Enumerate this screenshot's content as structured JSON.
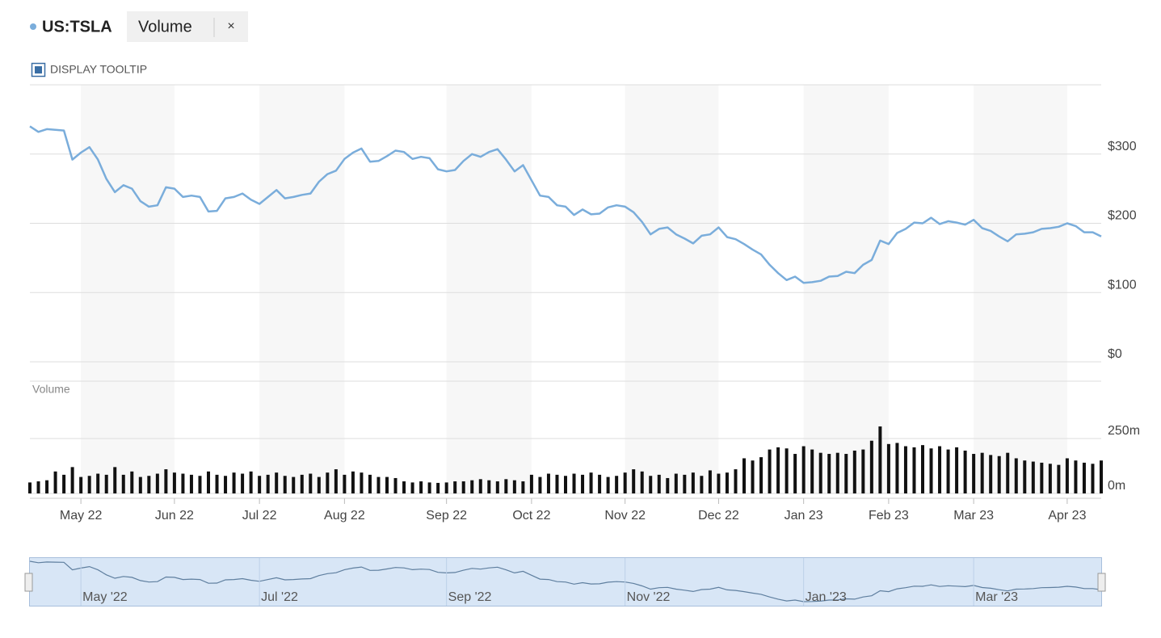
{
  "header": {
    "close": "×",
    "tooltip_toggle": "DISPLAY TOOLTIP"
  },
  "navigator": {
    "labels": [
      "May '22",
      "Jul '22",
      "Sep '22",
      "Nov '22",
      "Jan '23",
      "Mar '23"
    ]
  },
  "chart_data": [
    {
      "type": "line",
      "categories": [
        null,
        null,
        null,
        null,
        null,
        null,
        "May 22",
        null,
        null,
        null,
        null,
        null,
        null,
        null,
        null,
        null,
        null,
        "Jun 22",
        null,
        null,
        null,
        null,
        null,
        null,
        null,
        null,
        null,
        "Jul 22",
        null,
        null,
        null,
        null,
        null,
        null,
        null,
        null,
        null,
        "Aug 22",
        null,
        null,
        null,
        null,
        null,
        null,
        null,
        null,
        null,
        null,
        null,
        "Sep 22",
        null,
        null,
        null,
        null,
        null,
        null,
        null,
        null,
        null,
        "Oct 22",
        null,
        null,
        null,
        null,
        null,
        null,
        null,
        null,
        null,
        null,
        "Nov 22",
        null,
        null,
        null,
        null,
        null,
        null,
        null,
        null,
        null,
        null,
        "Dec 22",
        null,
        null,
        null,
        null,
        null,
        null,
        null,
        null,
        null,
        "Jan 23",
        null,
        null,
        null,
        null,
        null,
        null,
        null,
        null,
        null,
        "Feb 23",
        null,
        null,
        null,
        null,
        null,
        null,
        null,
        null,
        null,
        "Mar 23",
        null,
        null,
        null,
        null,
        null,
        null,
        null,
        null,
        null,
        null,
        "Apr 23",
        null,
        null,
        null,
        null
      ],
      "series": [
        {
          "name": "US:TSLA",
          "color": "#7aaddb",
          "values": [
            340,
            332,
            336,
            335,
            334,
            292,
            302,
            310,
            292,
            264,
            245,
            255,
            250,
            232,
            224,
            226,
            252,
            250,
            238,
            240,
            238,
            217,
            218,
            236,
            238,
            243,
            234,
            228,
            238,
            248,
            236,
            238,
            241,
            243,
            260,
            271,
            276,
            293,
            302,
            308,
            289,
            290,
            297,
            305,
            303,
            293,
            296,
            294,
            278,
            275,
            277,
            290,
            300,
            296,
            303,
            307,
            292,
            275,
            284,
            262,
            240,
            238,
            226,
            224,
            212,
            220,
            213,
            214,
            223,
            226,
            224,
            216,
            202,
            184,
            192,
            194,
            184,
            178,
            171,
            182,
            184,
            194,
            180,
            177,
            170,
            162,
            155,
            140,
            128,
            118,
            123,
            114,
            115,
            117,
            123,
            124,
            130,
            128,
            140,
            147,
            175,
            170,
            186,
            192,
            201,
            200,
            208,
            199,
            203,
            201,
            198,
            205,
            193,
            189,
            181,
            174,
            184,
            185,
            187,
            192,
            193,
            195,
            200,
            196,
            187,
            187,
            181
          ]
        }
      ],
      "ylim": [
        0,
        400
      ],
      "yticks": [
        {
          "value": 0,
          "label": "$0"
        },
        {
          "value": 100,
          "label": "$100"
        },
        {
          "value": 200,
          "label": "$200"
        },
        {
          "value": 300,
          "label": "$300"
        }
      ]
    },
    {
      "type": "bar",
      "title": "Volume",
      "color": "#111111",
      "values": [
        50,
        55,
        60,
        100,
        85,
        120,
        75,
        80,
        90,
        85,
        120,
        85,
        100,
        75,
        80,
        90,
        110,
        95,
        90,
        85,
        80,
        100,
        85,
        80,
        95,
        90,
        100,
        80,
        85,
        95,
        80,
        75,
        85,
        90,
        75,
        95,
        110,
        85,
        100,
        95,
        85,
        75,
        75,
        70,
        55,
        50,
        55,
        50,
        48,
        50,
        55,
        55,
        60,
        65,
        60,
        55,
        65,
        60,
        55,
        85,
        75,
        90,
        85,
        80,
        90,
        85,
        95,
        85,
        75,
        80,
        95,
        110,
        100,
        80,
        85,
        70,
        90,
        85,
        95,
        80,
        105,
        90,
        95,
        110,
        160,
        150,
        165,
        200,
        210,
        205,
        180,
        215,
        200,
        185,
        180,
        185,
        180,
        195,
        200,
        240,
        305,
        225,
        230,
        215,
        210,
        220,
        205,
        215,
        200,
        210,
        195,
        180,
        185,
        175,
        170,
        185,
        160,
        150,
        145,
        140,
        135,
        130,
        160,
        150,
        140,
        135,
        150
      ],
      "ylim": [
        0,
        500
      ],
      "yticks": [
        {
          "value": 0,
          "label": "0m"
        },
        {
          "value": 250,
          "label": "250m"
        }
      ]
    }
  ]
}
